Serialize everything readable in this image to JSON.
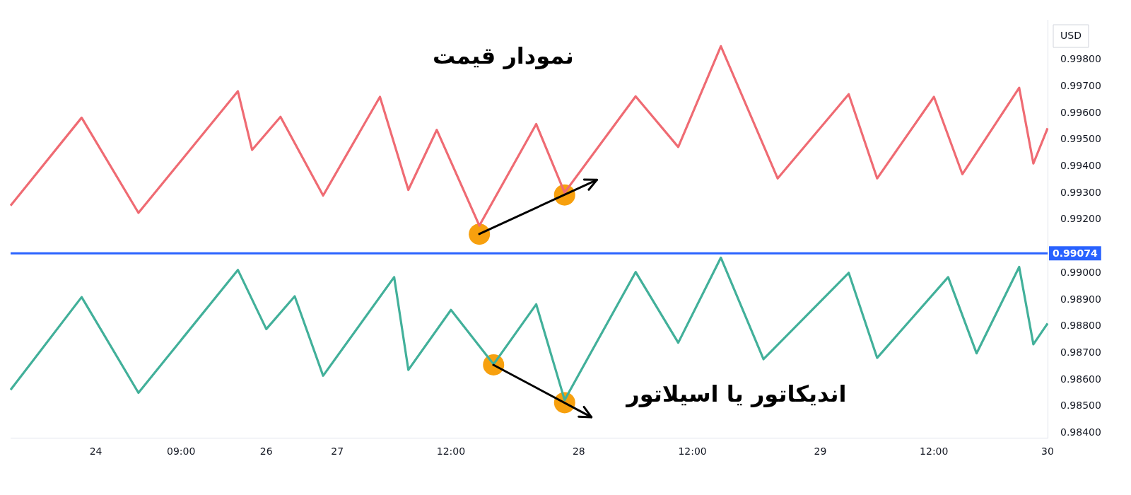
{
  "chart_data": {
    "type": "line",
    "legend": false,
    "grid": false,
    "marker": "none",
    "ylim": [
      0.98382,
      0.9995
    ],
    "categories": [
      null,
      null,
      null,
      null,
      null,
      null,
      "24",
      null,
      null,
      null,
      null,
      null,
      "09:00",
      null,
      null,
      null,
      null,
      null,
      "26",
      null,
      null,
      null,
      null,
      "27",
      null,
      null,
      null,
      null,
      null,
      null,
      null,
      "12:00",
      null,
      null,
      null,
      null,
      null,
      null,
      null,
      null,
      "28",
      null,
      null,
      null,
      null,
      null,
      null,
      null,
      "12:00",
      null,
      null,
      null,
      null,
      null,
      null,
      null,
      null,
      "29",
      null,
      null,
      null,
      null,
      null,
      null,
      null,
      "12:00",
      null,
      null,
      null,
      null,
      null,
      null,
      null,
      "30"
    ],
    "yticks": [
      {
        "value": 0.984,
        "label": "0.98400"
      },
      {
        "value": 0.985,
        "label": "0.98500"
      },
      {
        "value": 0.986,
        "label": "0.98600"
      },
      {
        "value": 0.987,
        "label": "0.98700"
      },
      {
        "value": 0.988,
        "label": "0.98800"
      },
      {
        "value": 0.989,
        "label": "0.98900"
      },
      {
        "value": 0.99,
        "label": "0.99000"
      },
      {
        "value": 0.992,
        "label": "0.99200"
      },
      {
        "value": 0.993,
        "label": "0.99300"
      },
      {
        "value": 0.994,
        "label": "0.99400"
      },
      {
        "value": 0.995,
        "label": "0.99500"
      },
      {
        "value": 0.996,
        "label": "0.99600"
      },
      {
        "value": 0.997,
        "label": "0.99700"
      },
      {
        "value": 0.998,
        "label": "0.99800"
      }
    ],
    "series": [
      {
        "color": "#ef6b73",
        "values": [
          0.99253,
          null,
          null,
          null,
          null,
          0.99583,
          null,
          null,
          null,
          0.99226,
          null,
          null,
          null,
          null,
          null,
          null,
          0.99682,
          0.99462,
          null,
          0.99586,
          null,
          null,
          0.99291,
          null,
          null,
          null,
          0.99661,
          null,
          0.99312,
          null,
          0.99537,
          null,
          null,
          0.99178,
          null,
          null,
          null,
          0.99559,
          null,
          0.99302,
          null,
          null,
          null,
          null,
          0.99663,
          null,
          null,
          0.99473,
          null,
          null,
          0.99851,
          null,
          null,
          null,
          0.99355,
          null,
          null,
          null,
          null,
          0.99671,
          null,
          0.99355,
          null,
          null,
          null,
          0.99661,
          null,
          0.99371,
          null,
          null,
          null,
          0.99695,
          0.99411,
          0.99543
        ]
      },
      {
        "color": "#42b09a",
        "values": [
          0.98562,
          null,
          null,
          null,
          null,
          0.9891,
          null,
          null,
          null,
          0.98551,
          null,
          null,
          null,
          null,
          null,
          null,
          0.99012,
          null,
          0.9879,
          null,
          0.98913,
          null,
          0.98615,
          null,
          null,
          null,
          null,
          0.98985,
          0.98637,
          null,
          null,
          0.98862,
          null,
          null,
          0.98658,
          null,
          null,
          0.98883,
          null,
          0.98524,
          null,
          null,
          null,
          null,
          0.99004,
          null,
          null,
          0.98739,
          null,
          null,
          0.99058,
          null,
          null,
          0.98677,
          null,
          null,
          null,
          null,
          null,
          0.99001,
          null,
          0.98682,
          null,
          null,
          null,
          null,
          0.98985,
          null,
          0.98699,
          null,
          null,
          0.99023,
          0.98733,
          0.98811
        ]
      },
      {
        "type": "scatter",
        "marker": "circle",
        "color": "#f7a00e",
        "values": [
          null,
          null,
          null,
          null,
          null,
          null,
          null,
          null,
          null,
          null,
          null,
          null,
          null,
          null,
          null,
          null,
          null,
          null,
          null,
          null,
          null,
          null,
          null,
          null,
          null,
          null,
          null,
          null,
          null,
          null,
          null,
          null,
          null,
          0.99146,
          null,
          null,
          null,
          null,
          null,
          0.99293,
          null,
          null,
          null,
          null,
          null,
          null,
          null,
          null,
          null,
          null,
          null,
          null,
          null,
          null,
          null,
          null,
          null,
          null,
          null,
          null,
          null,
          null,
          null,
          null,
          null,
          null,
          null,
          null,
          null,
          null,
          null,
          null,
          null,
          null
        ]
      },
      {
        "type": "scatter",
        "marker": "circle",
        "color": "#f7a00e",
        "values": [
          null,
          null,
          null,
          null,
          null,
          null,
          null,
          null,
          null,
          null,
          null,
          null,
          null,
          null,
          null,
          null,
          null,
          null,
          null,
          null,
          null,
          null,
          null,
          null,
          null,
          null,
          null,
          null,
          null,
          null,
          null,
          null,
          null,
          null,
          0.98656,
          null,
          null,
          null,
          null,
          0.98514,
          null,
          null,
          null,
          null,
          null,
          null,
          null,
          null,
          null,
          null,
          null,
          null,
          null,
          null,
          null,
          null,
          null,
          null,
          null,
          null,
          null,
          null,
          null,
          null,
          null,
          null,
          null,
          null,
          null,
          null,
          null,
          null,
          null,
          null
        ]
      }
    ],
    "ref_lines": [
      {
        "axis": "y",
        "value": 0.99074,
        "label": "0.99074",
        "color": "#2962ff"
      }
    ],
    "annotations": [
      "USD",
      "نمودار قیمت",
      "اندیکاتور یا اسیلاتور"
    ]
  }
}
